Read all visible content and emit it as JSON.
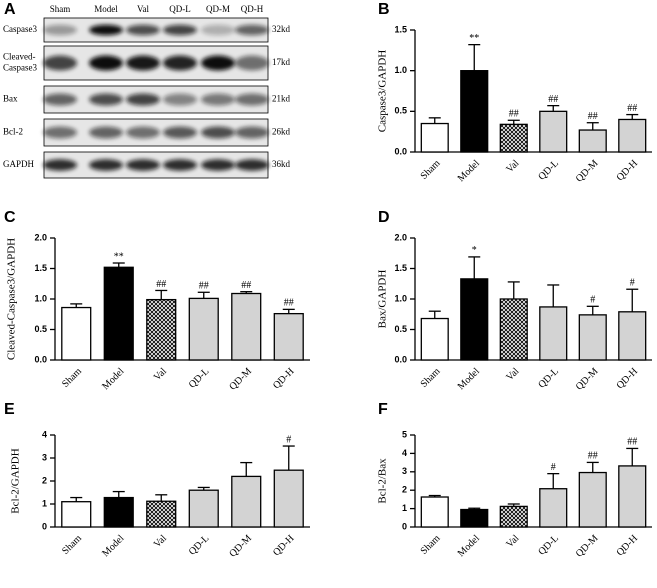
{
  "blot": {
    "panel": "A",
    "lanes": [
      "Sham",
      "Model",
      "Val",
      "QD-L",
      "QD-M",
      "QD-H"
    ],
    "rows": [
      {
        "protein": [
          "Caspase3"
        ],
        "size": "32kd"
      },
      {
        "protein": [
          "Cleaved-",
          "Caspase3"
        ],
        "size": "17kd"
      },
      {
        "protein": [
          "Bax"
        ],
        "size": "21kd"
      },
      {
        "protein": [
          "Bcl-2"
        ],
        "size": "26kd"
      },
      {
        "protein": [
          "GAPDH"
        ],
        "size": "36kd"
      }
    ]
  },
  "chart_data": [
    {
      "type": "bar",
      "panel": "B",
      "ylabel": "Caspase3/GAPDH",
      "categories": [
        "Sham",
        "Model",
        "Val",
        "QD-L",
        "QD-M",
        "QD-H"
      ],
      "values": [
        0.35,
        1.0,
        0.34,
        0.5,
        0.27,
        0.4
      ],
      "errors": [
        0.07,
        0.32,
        0.05,
        0.07,
        0.09,
        0.06
      ],
      "annotations": [
        null,
        "**",
        "##",
        "##",
        "##",
        "##"
      ],
      "colors": [
        "#ffffff",
        "#000000",
        "#ffffff",
        "#d3d3d3",
        "#d3d3d3",
        "#d3d3d3"
      ],
      "hatched": [
        false,
        false,
        true,
        false,
        false,
        false
      ],
      "ylim": [
        0,
        1.5
      ],
      "yticks": [
        {
          "value": 0,
          "label": "0.0"
        },
        0.5,
        {
          "value": 1,
          "label": "1.0"
        },
        1.5
      ]
    },
    {
      "type": "bar",
      "panel": "C",
      "ylabel": "Cleaved-Caspase3/GAPDH",
      "categories": [
        "Sham",
        "Model",
        "Val",
        "QD-L",
        "QD-M",
        "QD-H"
      ],
      "values": [
        0.86,
        1.52,
        0.99,
        1.01,
        1.09,
        0.76
      ],
      "errors": [
        0.06,
        0.07,
        0.15,
        0.1,
        0.03,
        0.07
      ],
      "annotations": [
        null,
        "**",
        "##",
        "##",
        "##",
        "##"
      ],
      "colors": [
        "#ffffff",
        "#000000",
        "#ffffff",
        "#d3d3d3",
        "#d3d3d3",
        "#d3d3d3"
      ],
      "hatched": [
        false,
        false,
        true,
        false,
        false,
        false
      ],
      "ylim": [
        0,
        2
      ],
      "yticks": [
        {
          "value": 0,
          "label": "0.0"
        },
        0.5,
        {
          "value": 1,
          "label": "1.0"
        },
        1.5,
        {
          "value": 2,
          "label": "2.0"
        }
      ]
    },
    {
      "type": "bar",
      "panel": "D",
      "ylabel": "Bax/GAPDH",
      "categories": [
        "Sham",
        "Model",
        "Val",
        "QD-L",
        "QD-M",
        "QD-H"
      ],
      "values": [
        0.68,
        1.33,
        1.0,
        0.87,
        0.74,
        0.79
      ],
      "errors": [
        0.12,
        0.36,
        0.28,
        0.36,
        0.14,
        0.37
      ],
      "annotations": [
        null,
        "*",
        null,
        null,
        "#",
        "#"
      ],
      "colors": [
        "#ffffff",
        "#000000",
        "#ffffff",
        "#d3d3d3",
        "#d3d3d3",
        "#d3d3d3"
      ],
      "hatched": [
        false,
        false,
        true,
        false,
        false,
        false
      ],
      "ylim": [
        0,
        2
      ],
      "yticks": [
        {
          "value": 0,
          "label": "0.0"
        },
        0.5,
        {
          "value": 1,
          "label": "1.0"
        },
        1.5,
        {
          "value": 2,
          "label": "2.0"
        }
      ]
    },
    {
      "type": "bar",
      "panel": "E",
      "ylabel": "Bcl-2/GAPDH",
      "categories": [
        "Sham",
        "Model",
        "Val",
        "QD-L",
        "QD-M",
        "QD-H"
      ],
      "values": [
        1.1,
        1.28,
        1.12,
        1.6,
        2.2,
        2.47
      ],
      "errors": [
        0.18,
        0.26,
        0.28,
        0.12,
        0.6,
        1.05
      ],
      "annotations": [
        null,
        null,
        null,
        null,
        null,
        "#"
      ],
      "colors": [
        "#ffffff",
        "#000000",
        "#ffffff",
        "#d3d3d3",
        "#d3d3d3",
        "#d3d3d3"
      ],
      "hatched": [
        false,
        false,
        true,
        false,
        false,
        false
      ],
      "ylim": [
        0,
        4
      ],
      "yticks": [
        0,
        1,
        2,
        3,
        4
      ]
    },
    {
      "type": "bar",
      "panel": "F",
      "ylabel": "Bcl-2/Bax",
      "categories": [
        "Sham",
        "Model",
        "Val",
        "QD-L",
        "QD-M",
        "QD-H"
      ],
      "values": [
        1.63,
        0.95,
        1.12,
        2.08,
        2.96,
        3.32
      ],
      "errors": [
        0.08,
        0.07,
        0.13,
        0.82,
        0.55,
        0.95
      ],
      "annotations": [
        null,
        null,
        null,
        "#",
        "##",
        "##"
      ],
      "colors": [
        "#ffffff",
        "#000000",
        "#ffffff",
        "#d3d3d3",
        "#d3d3d3",
        "#d3d3d3"
      ],
      "hatched": [
        false,
        false,
        true,
        false,
        false,
        false
      ],
      "ylim": [
        0,
        5
      ],
      "yticks": [
        0,
        1,
        2,
        3,
        4,
        5
      ]
    }
  ]
}
